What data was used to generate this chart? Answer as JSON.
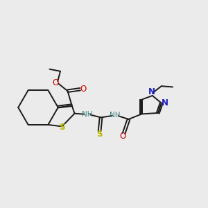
{
  "background_color": "#ebebeb",
  "bond_color": "#1a1a1a",
  "S_color": "#b8b800",
  "N_color": "#2020c0",
  "O_color": "#cc0000",
  "NH_color": "#408080",
  "figsize": [
    3.0,
    3.0
  ],
  "dpi": 100,
  "xlim": [
    0,
    12
  ],
  "ylim": [
    0,
    12
  ]
}
